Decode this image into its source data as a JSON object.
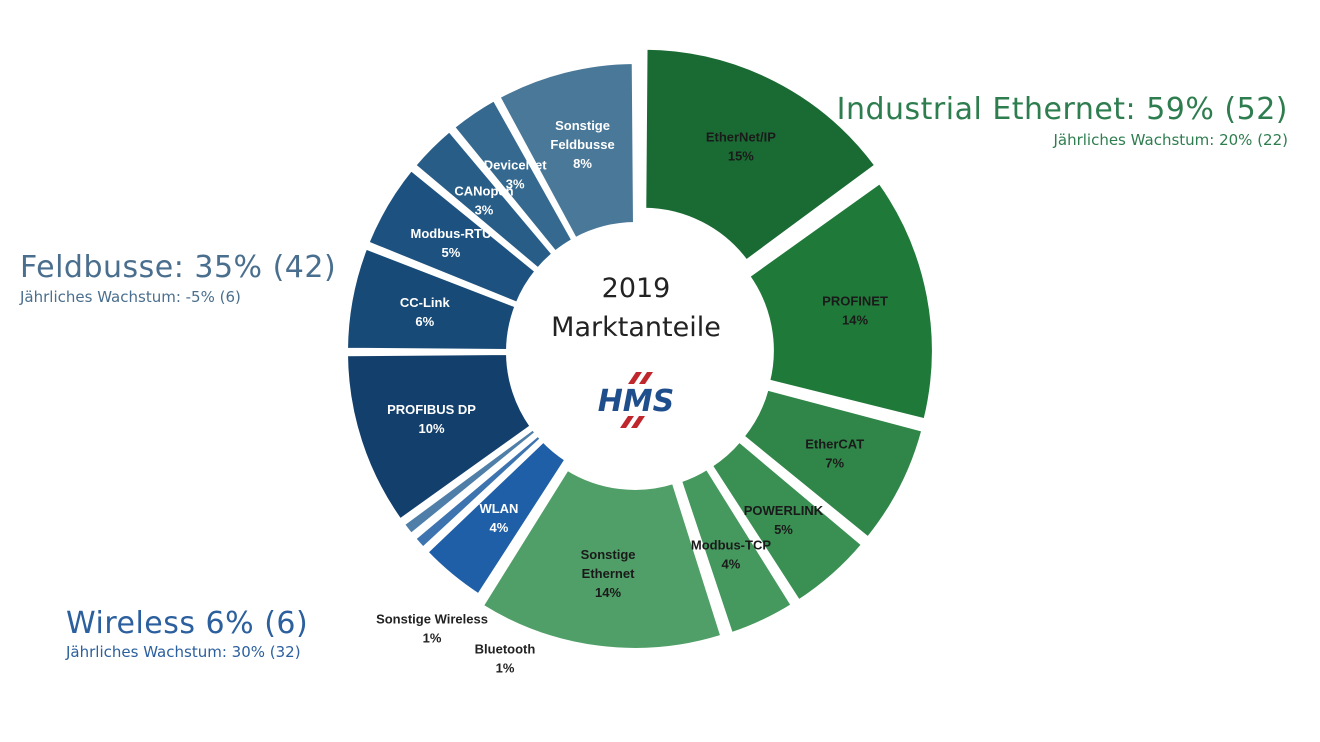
{
  "chart_data": {
    "type": "donut",
    "center": {
      "year": "2019",
      "title": "Marktanteile",
      "logo": "HMS"
    },
    "groups": [
      {
        "name": "Industrial Ethernet: 59% (52)",
        "subtitle": "Jährliches Wachstum: 20% (22)",
        "color": "#2e7d4f"
      },
      {
        "name": "Feldbusse: 35% (42)",
        "subtitle": "Jährliches Wachstum: -5% (6)",
        "color": "#4a6f8e"
      },
      {
        "name": "Wireless 6% (6)",
        "subtitle": "Jährliches Wachstum: 30% (32)",
        "color": "#2b5f9e"
      }
    ],
    "slices": [
      {
        "group": 0,
        "line1": "EtherNet/IP",
        "line2": "",
        "pct_label": "15%",
        "value": 15,
        "color": "#1a6b33",
        "text_color": "#1a1a1a"
      },
      {
        "group": 0,
        "line1": "PROFINET",
        "line2": "",
        "pct_label": "14%",
        "value": 14,
        "color": "#1f7a3a",
        "text_color": "#1a1a1a"
      },
      {
        "group": 0,
        "line1": "EtherCAT",
        "line2": "",
        "pct_label": "7%",
        "value": 7,
        "color": "#2f8648",
        "text_color": "#1a1a1a"
      },
      {
        "group": 0,
        "line1": "POWERLINK",
        "line2": "",
        "pct_label": "5%",
        "value": 5,
        "color": "#3a8f53",
        "text_color": "#1a1a1a"
      },
      {
        "group": 0,
        "line1": "Modbus-TCP",
        "line2": "",
        "pct_label": "4%",
        "value": 4,
        "color": "#45985e",
        "text_color": "#1a1a1a"
      },
      {
        "group": 0,
        "line1": "Sonstige",
        "line2": "Ethernet",
        "pct_label": "14%",
        "value": 14,
        "color": "#519f68",
        "text_color": "#1a1a1a"
      },
      {
        "group": 2,
        "line1": "WLAN",
        "line2": "",
        "pct_label": "4%",
        "value": 4,
        "color": "#1f5fa8",
        "text_color": "#ffffff"
      },
      {
        "group": 2,
        "line1": "Bluetooth",
        "line2": "",
        "pct_label": "1%",
        "value": 1,
        "color": "#3d74b0",
        "text_color": "#222222"
      },
      {
        "group": 2,
        "line1": "Sonstige Wireless",
        "line2": "",
        "pct_label": "1%",
        "value": 1,
        "color": "#4f7fa8",
        "text_color": "#222222"
      },
      {
        "group": 1,
        "line1": "PROFIBUS DP",
        "line2": "",
        "pct_label": "10%",
        "value": 10,
        "color": "#123f6b",
        "text_color": "#ffffff"
      },
      {
        "group": 1,
        "line1": "CC-Link",
        "line2": "",
        "pct_label": "6%",
        "value": 6,
        "color": "#174a76",
        "text_color": "#ffffff"
      },
      {
        "group": 1,
        "line1": "Modbus-RTU",
        "line2": "",
        "pct_label": "5%",
        "value": 5,
        "color": "#1d5280",
        "text_color": "#ffffff"
      },
      {
        "group": 1,
        "line1": "CANopen",
        "line2": "",
        "pct_label": "3%",
        "value": 3,
        "color": "#285d88",
        "text_color": "#ffffff"
      },
      {
        "group": 1,
        "line1": "DeviceNet",
        "line2": "",
        "pct_label": "3%",
        "value": 3,
        "color": "#35698f",
        "text_color": "#ffffff"
      },
      {
        "group": 1,
        "line1": "Sonstige",
        "line2": "Feldbusse",
        "pct_label": "8%",
        "value": 8,
        "color": "#4a7898",
        "text_color": "#ffffff"
      }
    ]
  }
}
